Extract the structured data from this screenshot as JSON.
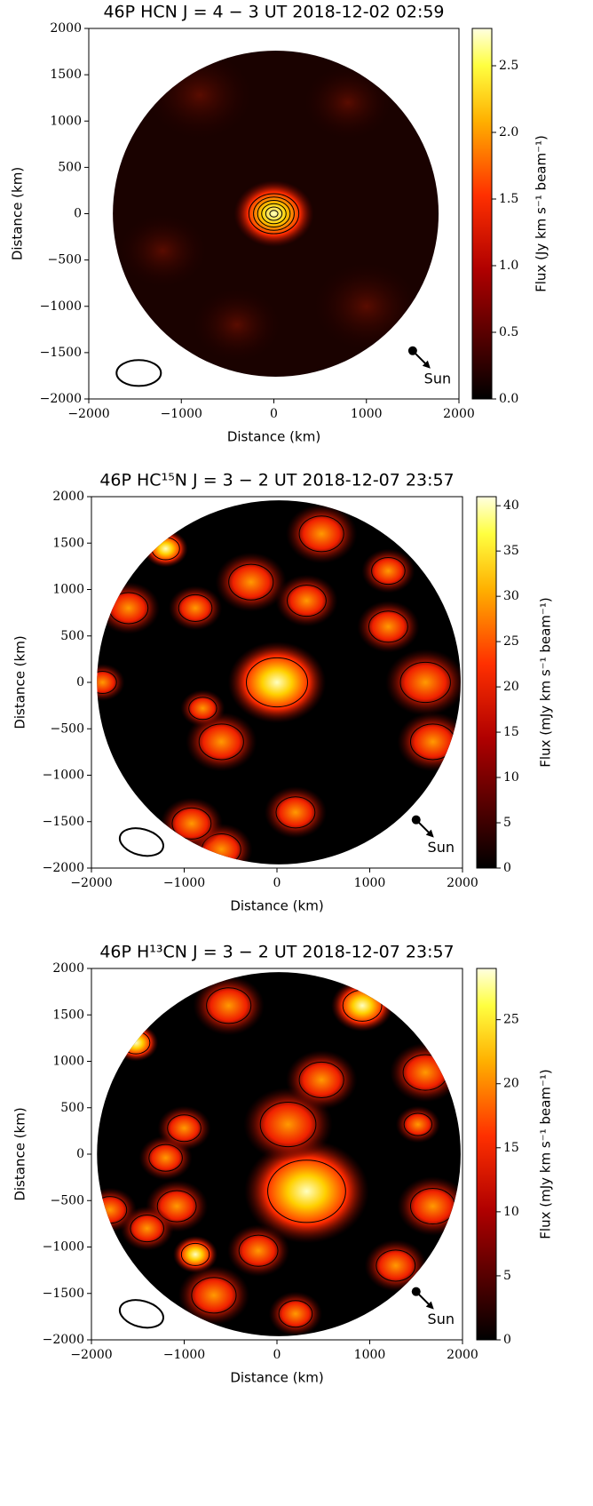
{
  "chart_data": [
    {
      "type": "heatmap",
      "title": "46P HCN J = 4 − 3   UT 2018-12-02 02:59",
      "xlabel": "Distance (km)",
      "ylabel": "Distance (km)",
      "xlim": [
        -2000,
        2000
      ],
      "ylim": [
        -2000,
        2000
      ],
      "xticks": [
        {
          "value": -2000,
          "label": "−2000"
        },
        {
          "value": -1000,
          "label": "−1000"
        },
        0,
        1000,
        2000
      ],
      "yticks": [
        {
          "value": -2000,
          "label": "−2000"
        },
        {
          "value": -1500,
          "label": "−1500"
        },
        {
          "value": -1000,
          "label": "−1000"
        },
        {
          "value": -500,
          "label": "−500"
        },
        0,
        500,
        1000,
        1500,
        2000
      ],
      "colorbar_label": "Flux (Jy km s⁻¹ beam⁻¹)",
      "clim": [
        0,
        2.78
      ],
      "cticks": [
        {
          "value": 0,
          "label": "0.0"
        },
        {
          "value": 0.5,
          "label": "0.5"
        },
        {
          "value": 1,
          "label": "1.0"
        },
        {
          "value": 1.5,
          "label": "1.5"
        },
        {
          "value": 2,
          "label": "2.0"
        },
        {
          "value": 2.5,
          "label": "2.5"
        }
      ],
      "annotation": "Sun"
    },
    {
      "type": "heatmap",
      "title": "46P HC¹⁵N J = 3 − 2   UT 2018-12-07 23:57",
      "xlabel": "Distance (km)",
      "ylabel": "Distance (km)",
      "xlim": [
        -2000,
        2000
      ],
      "ylim": [
        -2000,
        2000
      ],
      "xticks": [
        {
          "value": -2000,
          "label": "−2000"
        },
        {
          "value": -1000,
          "label": "−1000"
        },
        0,
        1000,
        2000
      ],
      "yticks": [
        {
          "value": -2000,
          "label": "−2000"
        },
        {
          "value": -1500,
          "label": "−1500"
        },
        {
          "value": -1000,
          "label": "−1000"
        },
        {
          "value": -500,
          "label": "−500"
        },
        0,
        500,
        1000,
        1500,
        2000
      ],
      "colorbar_label": "Flux (mJy km s⁻¹ beam⁻¹)",
      "clim": [
        0,
        41
      ],
      "cticks": [
        0,
        5,
        10,
        15,
        20,
        25,
        30,
        35,
        40
      ],
      "annotation": "Sun"
    },
    {
      "type": "heatmap",
      "title": "46P H¹³CN J = 3 − 2   UT 2018-12-07 23:57",
      "xlabel": "Distance (km)",
      "ylabel": "Distance (km)",
      "xlim": [
        -2000,
        2000
      ],
      "ylim": [
        -2000,
        2000
      ],
      "xticks": [
        {
          "value": -2000,
          "label": "−2000"
        },
        {
          "value": -1000,
          "label": "−1000"
        },
        0,
        1000,
        2000
      ],
      "yticks": [
        {
          "value": -2000,
          "label": "−2000"
        },
        {
          "value": -1500,
          "label": "−1500"
        },
        {
          "value": -1000,
          "label": "−1000"
        },
        {
          "value": -500,
          "label": "−500"
        },
        0,
        500,
        1000,
        1500,
        2000
      ],
      "colorbar_label": "Flux (mJy km s⁻¹ beam⁻¹)",
      "clim": [
        0,
        29
      ],
      "cticks": [
        0,
        5,
        10,
        15,
        20,
        25
      ],
      "annotation": "Sun"
    }
  ]
}
